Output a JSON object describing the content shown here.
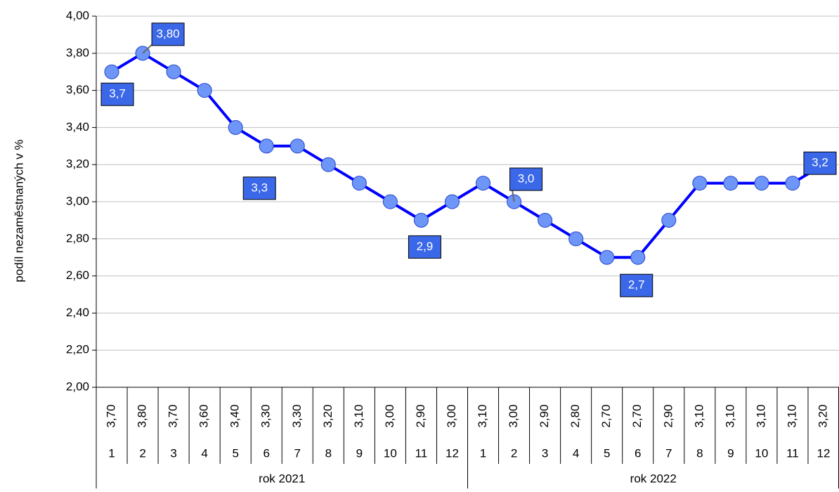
{
  "chart_data": {
    "type": "line",
    "y_label": "podíl nezaměstnaných  v %",
    "categories": [
      "1",
      "2",
      "3",
      "4",
      "5",
      "6",
      "7",
      "8",
      "9",
      "10",
      "11",
      "12",
      "1",
      "2",
      "3",
      "4",
      "5",
      "6",
      "7",
      "8",
      "9",
      "10",
      "11",
      "12"
    ],
    "category_groups": [
      "rok 2021",
      "rok 2022"
    ],
    "series": [
      {
        "color": "#0000ff",
        "values": [
          3.7,
          3.8,
          3.7,
          3.6,
          3.4,
          3.3,
          3.3,
          3.2,
          3.1,
          3.0,
          2.9,
          3.0,
          3.1,
          3.0,
          2.9,
          2.8,
          2.7,
          2.7,
          2.9,
          3.1,
          3.1,
          3.1,
          3.1,
          3.2
        ],
        "value_labels": [
          "3,70",
          "3,80",
          "3,70",
          "3,60",
          "3,40",
          "3,30",
          "3,30",
          "3,20",
          "3,10",
          "3,00",
          "2,90",
          "3,00",
          "3,10",
          "3,00",
          "2,90",
          "2,80",
          "2,70",
          "2,70",
          "2,90",
          "3,10",
          "3,10",
          "3,10",
          "3,10",
          "3,20"
        ],
        "point_labels": [
          "3,7",
          "3,80",
          null,
          null,
          null,
          "3,3",
          null,
          null,
          null,
          null,
          "2,9",
          null,
          null,
          "3,0",
          null,
          null,
          null,
          "2,7",
          null,
          null,
          null,
          null,
          null,
          "3,2"
        ]
      }
    ],
    "ylim": [
      2,
      4
    ],
    "yticks": [
      {
        "value": 2,
        "label": "2,00"
      },
      {
        "value": 2.2,
        "label": "2,20"
      },
      {
        "value": 2.4,
        "label": "2,40"
      },
      {
        "value": 2.6,
        "label": "2,60"
      },
      {
        "value": 2.8,
        "label": "2,80"
      },
      {
        "value": 3,
        "label": "3,00"
      },
      {
        "value": 3.2,
        "label": "3,20"
      },
      {
        "value": 3.4,
        "label": "3,40"
      },
      {
        "value": 3.6,
        "label": "3,60"
      },
      {
        "value": 3.8,
        "label": "3,80"
      },
      {
        "value": 4,
        "label": "4,00"
      }
    ],
    "grid": true
  }
}
